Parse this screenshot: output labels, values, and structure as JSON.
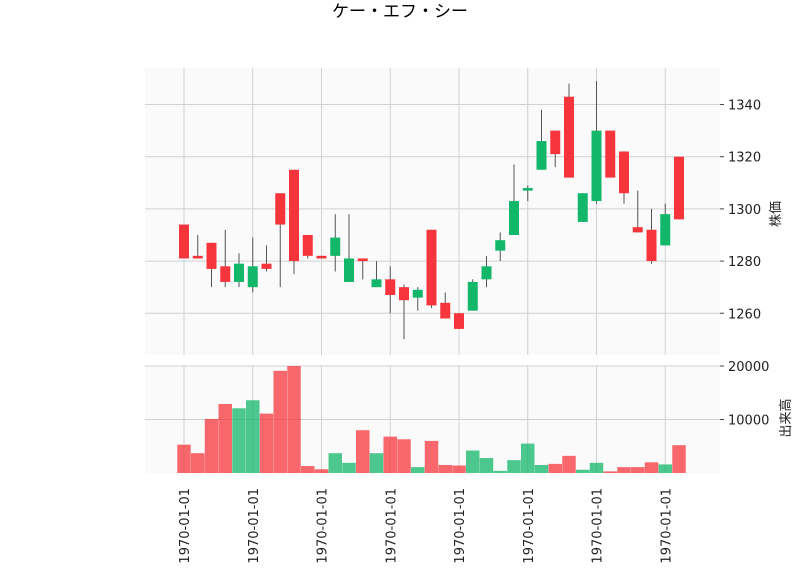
{
  "chart_data": {
    "type": "candlestick",
    "title": "ケー・エフ・シー",
    "price_panel": {
      "ylabel": "株価",
      "yticks": [
        1260,
        1280,
        1300,
        1320,
        1340
      ],
      "ylim": [
        1244,
        1354
      ]
    },
    "volume_panel": {
      "ylabel": "出来高",
      "yticks": [
        10000,
        20000
      ],
      "ylim": [
        0,
        20000
      ]
    },
    "x_tick_labels": [
      "1970-01-01",
      "1970-01-01",
      "1970-01-01",
      "1970-01-01",
      "1970-01-01",
      "1970-01-01",
      "1970-01-01",
      "1970-01-01"
    ],
    "up_color": "#12b76a",
    "down_color": "#f5353b",
    "grid": true,
    "candles": [
      {
        "open": 1294,
        "high": 1294,
        "low": 1281,
        "close": 1281,
        "volume": 5300
      },
      {
        "open": 1282,
        "high": 1290,
        "low": 1281,
        "close": 1281,
        "volume": 3700
      },
      {
        "open": 1287,
        "high": 1287,
        "low": 1270,
        "close": 1277,
        "volume": 10100
      },
      {
        "open": 1278,
        "high": 1292,
        "low": 1270,
        "close": 1272,
        "volume": 12900
      },
      {
        "open": 1272,
        "high": 1283,
        "low": 1270,
        "close": 1279,
        "volume": 12100
      },
      {
        "open": 1270,
        "high": 1289,
        "low": 1268,
        "close": 1278,
        "volume": 13600
      },
      {
        "open": 1279,
        "high": 1286,
        "low": 1276,
        "close": 1277,
        "volume": 11100
      },
      {
        "open": 1306,
        "high": 1306,
        "low": 1270,
        "close": 1294,
        "volume": 19100
      },
      {
        "open": 1315,
        "high": 1315,
        "low": 1275,
        "close": 1280,
        "volume": 20000
      },
      {
        "open": 1290,
        "high": 1290,
        "low": 1281,
        "close": 1282,
        "volume": 1300
      },
      {
        "open": 1282,
        "high": 1282,
        "low": 1281,
        "close": 1281,
        "volume": 700
      },
      {
        "open": 1282,
        "high": 1298,
        "low": 1276,
        "close": 1289,
        "volume": 3700
      },
      {
        "open": 1272,
        "high": 1298,
        "low": 1272,
        "close": 1281,
        "volume": 1900
      },
      {
        "open": 1281,
        "high": 1281,
        "low": 1273,
        "close": 1280,
        "volume": 8000
      },
      {
        "open": 1270,
        "high": 1280,
        "low": 1270,
        "close": 1273,
        "volume": 3700
      },
      {
        "open": 1273,
        "high": 1278,
        "low": 1260,
        "close": 1267,
        "volume": 6800
      },
      {
        "open": 1270,
        "high": 1271,
        "low": 1250,
        "close": 1265,
        "volume": 6300
      },
      {
        "open": 1266,
        "high": 1270,
        "low": 1261,
        "close": 1269,
        "volume": 1100
      },
      {
        "open": 1292,
        "high": 1292,
        "low": 1262,
        "close": 1263,
        "volume": 6000
      },
      {
        "open": 1264,
        "high": 1268,
        "low": 1258,
        "close": 1258,
        "volume": 1500
      },
      {
        "open": 1260,
        "high": 1260,
        "low": 1254,
        "close": 1254,
        "volume": 1400
      },
      {
        "open": 1261,
        "high": 1273,
        "low": 1261,
        "close": 1272,
        "volume": 4200
      },
      {
        "open": 1273,
        "high": 1282,
        "low": 1270,
        "close": 1278,
        "volume": 2800
      },
      {
        "open": 1284,
        "high": 1291,
        "low": 1280,
        "close": 1288,
        "volume": 400
      },
      {
        "open": 1290,
        "high": 1317,
        "low": 1290,
        "close": 1303,
        "volume": 2400
      },
      {
        "open": 1307,
        "high": 1309,
        "low": 1303,
        "close": 1308,
        "volume": 5500
      },
      {
        "open": 1315,
        "high": 1338,
        "low": 1315,
        "close": 1326,
        "volume": 1500
      },
      {
        "open": 1330,
        "high": 1330,
        "low": 1316,
        "close": 1321,
        "volume": 1700
      },
      {
        "open": 1343,
        "high": 1348,
        "low": 1312,
        "close": 1312,
        "volume": 3200
      },
      {
        "open": 1295,
        "high": 1306,
        "low": 1295,
        "close": 1306,
        "volume": 600
      },
      {
        "open": 1303,
        "high": 1349,
        "low": 1302,
        "close": 1330,
        "volume": 1900
      },
      {
        "open": 1330,
        "high": 1330,
        "low": 1312,
        "close": 1312,
        "volume": 300
      },
      {
        "open": 1322,
        "high": 1322,
        "low": 1302,
        "close": 1306,
        "volume": 1100
      },
      {
        "open": 1293,
        "high": 1307,
        "low": 1291,
        "close": 1291,
        "volume": 1100
      },
      {
        "open": 1292,
        "high": 1300,
        "low": 1279,
        "close": 1280,
        "volume": 2000
      },
      {
        "open": 1286,
        "high": 1302,
        "low": 1286,
        "close": 1298,
        "volume": 1600
      },
      {
        "open": 1320,
        "high": 1320,
        "low": 1296,
        "close": 1296,
        "volume": 5200
      }
    ]
  }
}
